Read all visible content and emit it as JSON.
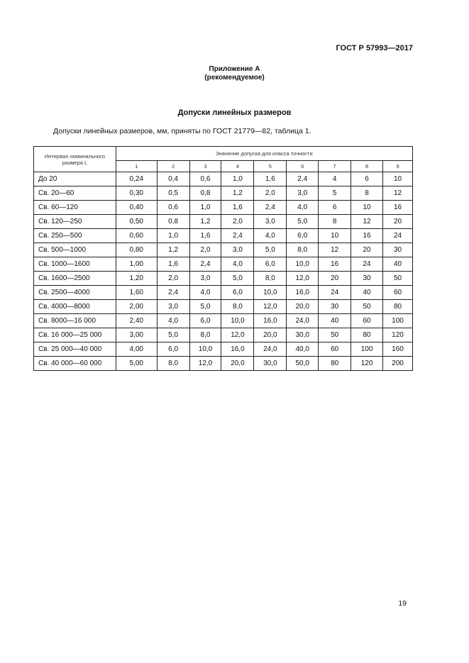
{
  "header": {
    "doc_id": "ГОСТ Р 57993—2017"
  },
  "annex": {
    "title": "Приложение А",
    "subtitle": "(рекомендуемое)"
  },
  "section_title": "Допуски линейных размеров",
  "intro": "Допуски линейных размеров, мм, приняты по ГОСТ 21779—82, таблица 1.",
  "table": {
    "row_header": "Интервал номинального размера L",
    "group_header": "Значение допуска для класса точности",
    "classes": [
      "1",
      "2",
      "3",
      "4",
      "5",
      "6",
      "7",
      "8",
      "9"
    ],
    "rows": [
      {
        "interval": "До 20",
        "values": [
          "0,24",
          "0,4",
          "0,6",
          "1,0",
          "1,6",
          "2,4",
          "4",
          "6",
          "10"
        ]
      },
      {
        "interval": "Св. 20—60",
        "values": [
          "0,30",
          "0,5",
          "0,8",
          "1,2",
          "2,0",
          "3,0",
          "5",
          "8",
          "12"
        ]
      },
      {
        "interval": "Св. 60—120",
        "values": [
          "0,40",
          "0,6",
          "1,0",
          "1,6",
          "2,4",
          "4,0",
          "6",
          "10",
          "16"
        ]
      },
      {
        "interval": "Св. 120—250",
        "values": [
          "0,50",
          "0,8",
          "1,2",
          "2,0",
          "3,0",
          "5,0",
          "8",
          "12",
          "20"
        ]
      },
      {
        "interval": "Св. 250—500",
        "values": [
          "0,60",
          "1,0",
          "1,6",
          "2,4",
          "4,0",
          "6,0",
          "10",
          "16",
          "24"
        ]
      },
      {
        "interval": "Св. 500—1000",
        "values": [
          "0,80",
          "1,2",
          "2,0",
          "3,0",
          "5,0",
          "8,0",
          "12",
          "20",
          "30"
        ]
      },
      {
        "interval": "Св. 1000—1600",
        "values": [
          "1,00",
          "1,6",
          "2,4",
          "4,0",
          "6,0",
          "10,0",
          "16",
          "24",
          "40"
        ]
      },
      {
        "interval": "Св. 1600—2500",
        "values": [
          "1,20",
          "2,0",
          "3,0",
          "5,0",
          "8,0",
          "12,0",
          "20",
          "30",
          "50"
        ]
      },
      {
        "interval": "Св. 2500—4000",
        "values": [
          "1,60",
          "2,4",
          "4,0",
          "6,0",
          "10,0",
          "16,0",
          "24",
          "40",
          "60"
        ]
      },
      {
        "interval": "Св. 4000—8000",
        "values": [
          "2,00",
          "3,0",
          "5,0",
          "8,0",
          "12,0",
          "20,0",
          "30",
          "50",
          "80"
        ]
      },
      {
        "interval": "Св. 8000—16 000",
        "values": [
          "2,40",
          "4,0",
          "6,0",
          "10,0",
          "16,0",
          "24,0",
          "40",
          "60",
          "100"
        ]
      },
      {
        "interval": "Св. 16 000—25 000",
        "values": [
          "3,00",
          "5,0",
          "8,0",
          "12,0",
          "20,0",
          "30,0",
          "50",
          "80",
          "120"
        ]
      },
      {
        "interval": "Св. 25 000—40 000",
        "values": [
          "4,00",
          "6,0",
          "10,0",
          "16,0",
          "24,0",
          "40,0",
          "60",
          "100",
          "160"
        ]
      },
      {
        "interval": "Св. 40 000—60 000",
        "values": [
          "5,00",
          "8,0",
          "12,0",
          "20,0",
          "30,0",
          "50,0",
          "80",
          "120",
          "200"
        ]
      }
    ]
  },
  "page_number": "19"
}
